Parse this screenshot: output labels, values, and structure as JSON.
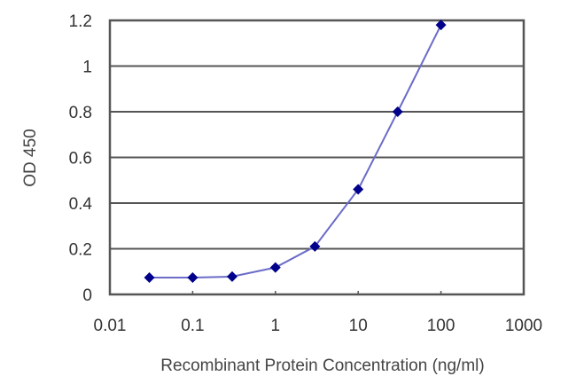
{
  "chart_data": {
    "type": "line",
    "title": "",
    "xlabel": "Recombinant Protein Concentration (ng/ml)",
    "ylabel": "OD 450",
    "x_scale": "log",
    "xlim": [
      0.01,
      1000
    ],
    "ylim": [
      0,
      1.2
    ],
    "x_ticks": [
      "0.01",
      "0.1",
      "1",
      "10",
      "100",
      "1000"
    ],
    "y_ticks": [
      "0",
      "0.2",
      "0.4",
      "0.6",
      "0.8",
      "1",
      "1.2"
    ],
    "grid": {
      "horizontal": true,
      "vertical": false
    },
    "legend": null,
    "series": [
      {
        "name": "OD 450",
        "color": "#00008B",
        "line_color": "#6B6BC8",
        "marker": "diamond",
        "x": [
          0.03,
          0.1,
          0.3,
          1,
          3,
          10,
          30,
          100
        ],
        "values": [
          0.074,
          0.074,
          0.078,
          0.118,
          0.21,
          0.46,
          0.8,
          1.18
        ]
      }
    ]
  }
}
